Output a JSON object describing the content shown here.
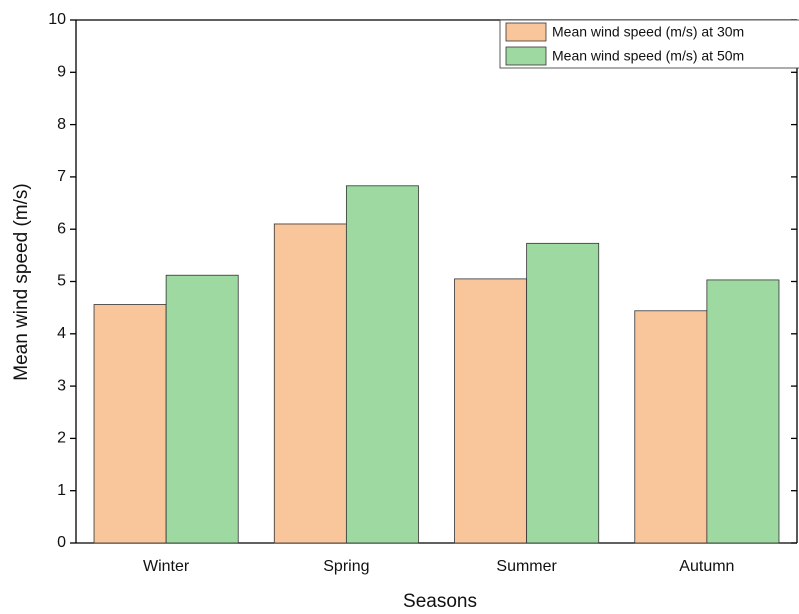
{
  "chart_data": {
    "type": "bar",
    "x_label": "Seasons",
    "y_label": "Mean wind speed (m/s)",
    "categories": [
      "Winter",
      "Spring",
      "Summer",
      "Autumn"
    ],
    "series": [
      {
        "name": "Mean wind speed (m/s) at 30m",
        "color": "#f9c69b",
        "values": [
          4.56,
          6.1,
          5.05,
          4.44
        ]
      },
      {
        "name": "Mean wind speed (m/s) at 50m",
        "color": "#9dd9a0",
        "values": [
          5.12,
          6.83,
          5.73,
          5.03
        ]
      }
    ],
    "ylim": [
      0,
      10
    ],
    "yticks": [
      0,
      1,
      2,
      3,
      4,
      5,
      6,
      7,
      8,
      9,
      10
    ],
    "grid": false,
    "legend": "upper right"
  }
}
